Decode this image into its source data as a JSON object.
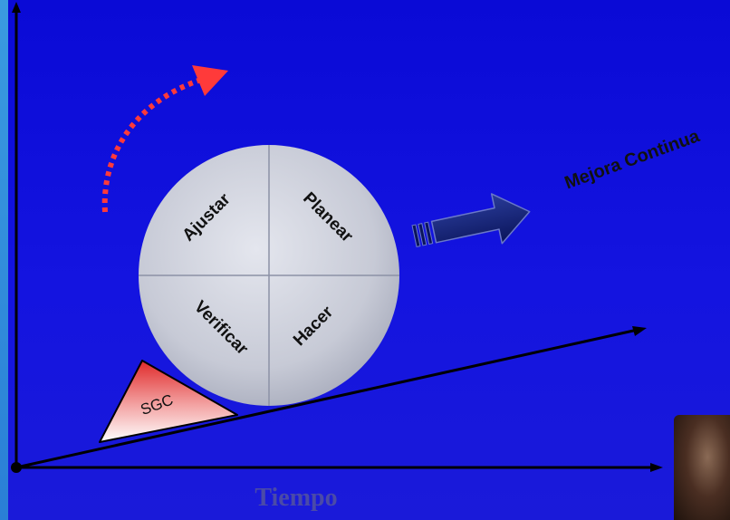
{
  "diagram": {
    "quadrants": {
      "top_left": "Ajustar",
      "top_right": "Planear",
      "bottom_left": "Verificar",
      "bottom_right": "Hacer"
    },
    "wedge_label": "SGC",
    "improvement_label": "Mejora Continua",
    "x_axis_label": "Tiempo"
  },
  "colors": {
    "background": "#1212dc",
    "circle": "#c9ccd8",
    "wedge_top": "#e03030",
    "arrow_navy": "#0c1a6e",
    "curved_arrow": "#ff3a3a",
    "axis_label": "#4a4aa8"
  }
}
